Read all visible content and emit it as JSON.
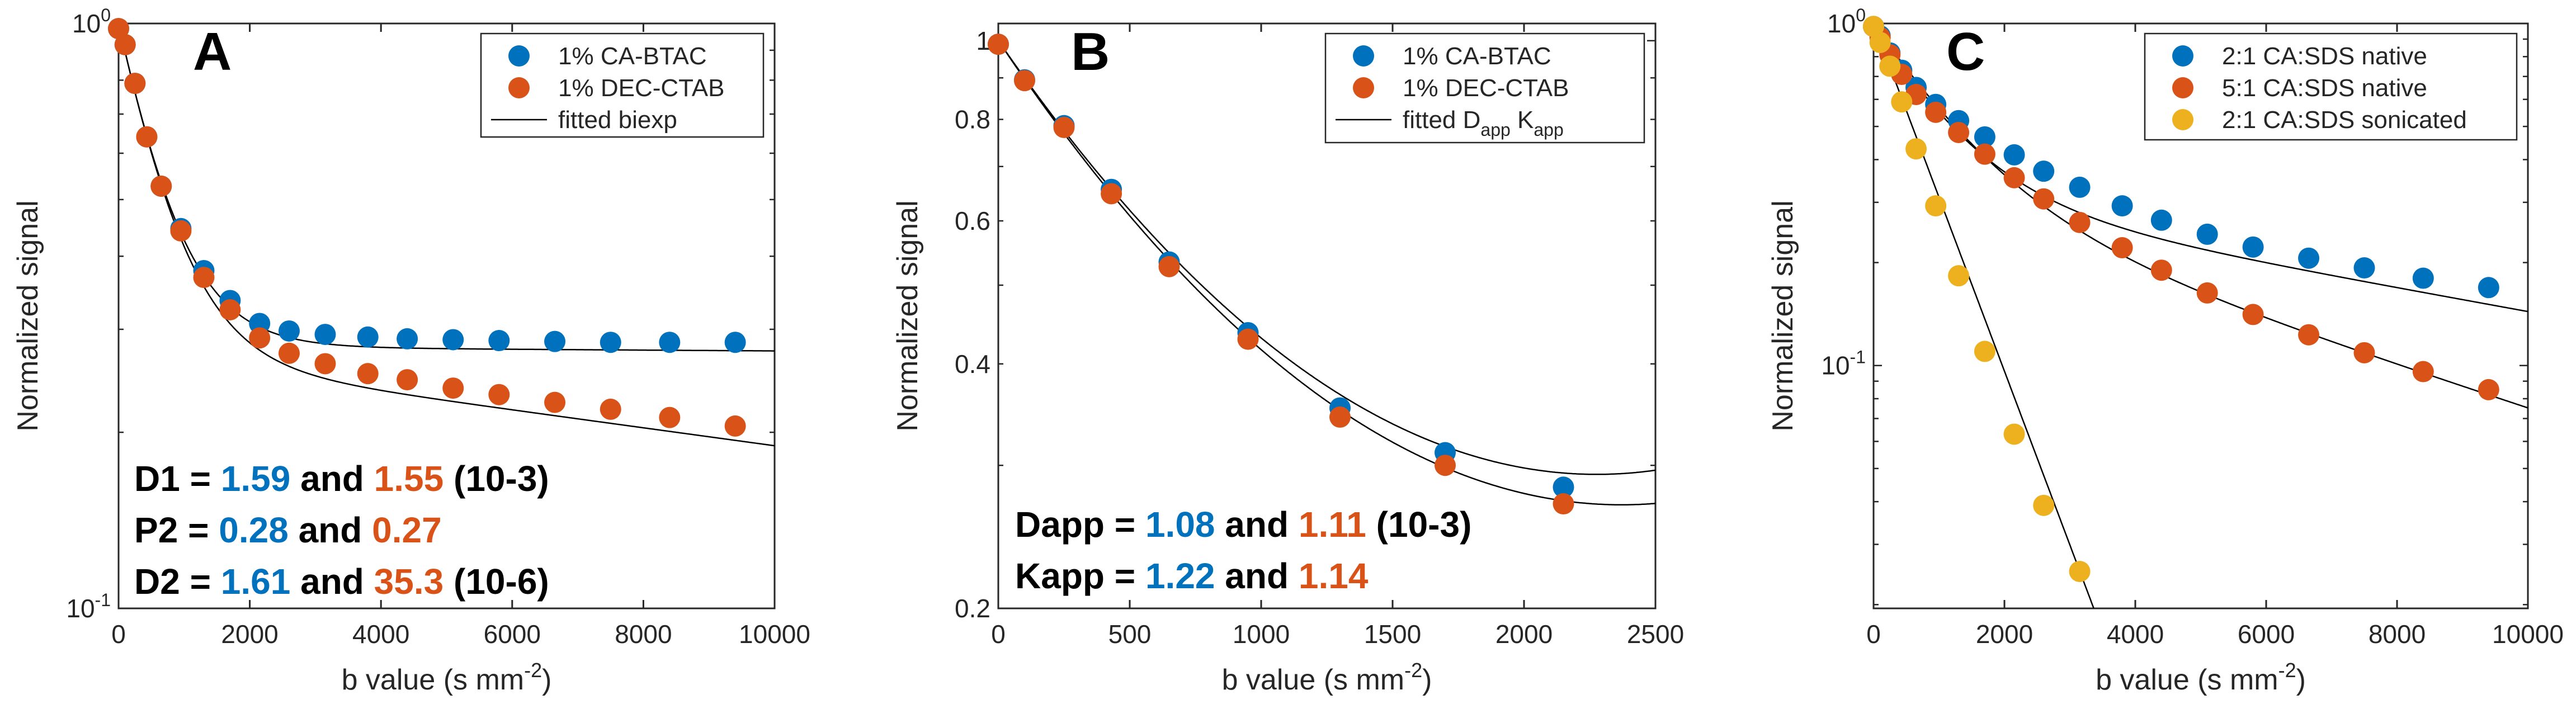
{
  "colors": {
    "blue": "#0072BD",
    "orange": "#D95319",
    "yellow": "#EDB120",
    "axis": "#262626",
    "fit": "#000000"
  },
  "chart_data": [
    {
      "type": "scatter",
      "panel_label": "A",
      "xlabel": {
        "main": "b value (s mm",
        "sup": "-2",
        "close": ")"
      },
      "ylabel": "Normalized signal",
      "xscale": "linear",
      "yscale": "log",
      "xlim": [
        0,
        10000
      ],
      "ylim": [
        0.1,
        1
      ],
      "xticks": [
        0,
        2000,
        4000,
        6000,
        8000,
        10000
      ],
      "xtick_labels": [
        "0",
        "2000",
        "4000",
        "6000",
        "8000",
        "10000"
      ],
      "yticks": [
        {
          "value": 1,
          "base": "10",
          "exp": "0"
        },
        {
          "value": 0.1,
          "base": "10",
          "exp": "-1"
        }
      ],
      "legend": {
        "position": "top-right",
        "entries": [
          {
            "label": "1% CA-BTAC",
            "kind": "marker",
            "color": "blue"
          },
          {
            "label": "1% DEC-CTAB",
            "kind": "marker",
            "color": "orange"
          },
          {
            "label": "fitted biexp",
            "kind": "line",
            "color": "fit"
          }
        ]
      },
      "series": [
        {
          "name": "1% CA-BTAC",
          "color": "blue",
          "x": [
            0,
            100,
            250,
            430,
            650,
            950,
            1300,
            1700,
            2150,
            2600,
            3150,
            3800,
            4400,
            5100,
            5800,
            6650,
            7500,
            8400,
            9400
          ],
          "y": [
            0.98,
            0.92,
            0.79,
            0.64,
            0.527,
            0.446,
            0.378,
            0.336,
            0.307,
            0.298,
            0.294,
            0.291,
            0.289,
            0.288,
            0.287,
            0.286,
            0.285,
            0.285,
            0.285
          ]
        },
        {
          "name": "1% DEC-CTAB",
          "color": "orange",
          "x": [
            0,
            100,
            250,
            430,
            650,
            950,
            1300,
            1700,
            2150,
            2600,
            3150,
            3800,
            4400,
            5100,
            5800,
            6650,
            7500,
            8400,
            9400
          ],
          "y": [
            0.98,
            0.92,
            0.79,
            0.64,
            0.527,
            0.442,
            0.368,
            0.324,
            0.29,
            0.273,
            0.262,
            0.252,
            0.246,
            0.238,
            0.232,
            0.225,
            0.219,
            0.212,
            0.205
          ]
        }
      ],
      "fits": [
        {
          "model": "biexp",
          "f": 0.72,
          "d1_mm2_per_s": 0.00159,
          "p2": 0.28,
          "d2_mm2_per_s": 1.61e-06,
          "xmax": 10000
        },
        {
          "model": "biexp",
          "f": 0.73,
          "d1_mm2_per_s": 0.00155,
          "p2": 0.27,
          "d2_mm2_per_s": 3.53e-05,
          "xmax": 10000
        }
      ],
      "annotations": [
        {
          "prefix": "D1 = ",
          "v1": "1.59",
          "mid": " and ",
          "v2": "1.55",
          "suffix": " (10-3)"
        },
        {
          "prefix": "P2 = ",
          "v1": "0.28",
          "mid": " and ",
          "v2": "0.27",
          "suffix": ""
        },
        {
          "prefix": "D2 = ",
          "v1": "1.61",
          "mid": " and ",
          "v2": "35.3",
          "suffix": " (10-6)"
        }
      ]
    },
    {
      "type": "scatter",
      "panel_label": "B",
      "xlabel": {
        "main": "b value (s mm",
        "sup": "-2",
        "close": ")"
      },
      "ylabel": "Normalized signal",
      "xscale": "linear",
      "yscale": "log",
      "xlim": [
        0,
        2500
      ],
      "ylim": [
        0.2,
        1.05
      ],
      "xticks": [
        0,
        500,
        1000,
        1500,
        2000,
        2500
      ],
      "xtick_labels": [
        "0",
        "500",
        "1000",
        "1500",
        "2000",
        "2500"
      ],
      "yticks": [
        {
          "value": 1,
          "label": "1"
        },
        {
          "value": 0.8,
          "label": "0.8"
        },
        {
          "value": 0.6,
          "label": "0.6"
        },
        {
          "value": 0.4,
          "label": "0.4"
        },
        {
          "value": 0.2,
          "label": "0.2"
        }
      ],
      "legend": {
        "position": "top-right",
        "entries": [
          {
            "label": "1% CA-BTAC",
            "kind": "marker",
            "color": "blue"
          },
          {
            "label": "1% DEC-CTAB",
            "kind": "marker",
            "color": "orange"
          },
          {
            "label": "fitted D",
            "sub1": "app",
            "mid": " K",
            "sub2": "app",
            "kind": "line",
            "color": "fit"
          }
        ]
      },
      "series": [
        {
          "name": "1% CA-BTAC",
          "color": "blue",
          "x": [
            0,
            100,
            250,
            430,
            650,
            950,
            1300,
            1700,
            2150
          ],
          "y": [
            0.99,
            0.895,
            0.786,
            0.656,
            0.534,
            0.437,
            0.353,
            0.311,
            0.282
          ]
        },
        {
          "name": "1% DEC-CTAB",
          "color": "orange",
          "x": [
            0,
            100,
            250,
            430,
            650,
            950,
            1300,
            1700,
            2150
          ],
          "y": [
            0.99,
            0.893,
            0.782,
            0.648,
            0.527,
            0.429,
            0.344,
            0.3,
            0.269
          ]
        }
      ],
      "fits": [
        {
          "model": "kurtosis",
          "dapp_mm2_per_s": 0.00108,
          "kapp": 1.22,
          "xmax": 2500
        },
        {
          "model": "kurtosis",
          "dapp_mm2_per_s": 0.00111,
          "kapp": 1.14,
          "xmax": 2500
        }
      ],
      "annotations": [
        {
          "prefix": "Dapp = ",
          "v1": "1.08",
          "mid": " and ",
          "v2": "1.11",
          "suffix": " (10-3)"
        },
        {
          "prefix": "Kapp = ",
          "v1": "1.22",
          "mid": " and ",
          "v2": "1.14",
          "suffix": ""
        }
      ]
    },
    {
      "type": "scatter",
      "panel_label": "C",
      "xlabel": {
        "main": "b value (s mm",
        "sup": "-2",
        "close": ")"
      },
      "ylabel": "Normalized signal",
      "xscale": "linear",
      "yscale": "log",
      "xlim": [
        0,
        10000
      ],
      "ylim": [
        0.0195,
        1
      ],
      "xticks": [
        0,
        2000,
        4000,
        6000,
        8000,
        10000
      ],
      "xtick_labels": [
        "0",
        "2000",
        "4000",
        "6000",
        "8000",
        "10000"
      ],
      "yticks": [
        {
          "value": 1,
          "base": "10",
          "exp": "0"
        },
        {
          "value": 0.1,
          "base": "10",
          "exp": "-1"
        }
      ],
      "legend": {
        "position": "top-right",
        "entries": [
          {
            "label": "2:1 CA:SDS native",
            "kind": "marker",
            "color": "blue"
          },
          {
            "label": "5:1 CA:SDS native",
            "kind": "marker",
            "color": "orange"
          },
          {
            "label": "2:1 CA:SDS sonicated",
            "kind": "marker",
            "color": "yellow"
          }
        ]
      },
      "series": [
        {
          "name": "2:1 CA:SDS native",
          "color": "blue",
          "x": [
            0,
            100,
            250,
            430,
            650,
            950,
            1300,
            1700,
            2150,
            2600,
            3150,
            3800,
            4400,
            5100,
            5800,
            6650,
            7500,
            8400,
            9400
          ],
          "y": [
            0.98,
            0.92,
            0.82,
            0.73,
            0.65,
            0.58,
            0.52,
            0.466,
            0.413,
            0.37,
            0.332,
            0.293,
            0.266,
            0.242,
            0.222,
            0.206,
            0.193,
            0.18,
            0.169
          ]
        },
        {
          "name": "5:1 CA:SDS native",
          "color": "orange",
          "x": [
            0,
            100,
            250,
            430,
            650,
            950,
            1300,
            1700,
            2150,
            2600,
            3150,
            3800,
            4400,
            5100,
            5800,
            6650,
            7500,
            8400,
            9400
          ],
          "y": [
            0.98,
            0.91,
            0.81,
            0.71,
            0.62,
            0.55,
            0.48,
            0.415,
            0.354,
            0.307,
            0.262,
            0.221,
            0.19,
            0.163,
            0.141,
            0.123,
            0.109,
            0.096,
            0.085
          ]
        },
        {
          "name": "2:1 CA:SDS sonicated",
          "color": "yellow",
          "x": [
            0,
            100,
            250,
            430,
            650,
            950,
            1300,
            1700,
            2150,
            2600,
            3150
          ],
          "y": [
            0.98,
            0.88,
            0.75,
            0.59,
            0.43,
            0.293,
            0.183,
            0.11,
            0.063,
            0.039,
            0.025
          ]
        }
      ],
      "fits": [
        {
          "model": "biexp",
          "f": 0.68,
          "d1_mm2_per_s": 0.00098,
          "p2": 0.32,
          "d2_mm2_per_s": 8e-05,
          "xmax": 10000
        },
        {
          "model": "biexp",
          "f": 0.68,
          "d1_mm2_per_s": 0.00086,
          "p2": 0.32,
          "d2_mm2_per_s": 0.000145,
          "xmax": 10000
        },
        {
          "model": "biexp",
          "f": 1.0,
          "d1_mm2_per_s": 0.00117,
          "p2": 0,
          "d2_mm2_per_s": 0,
          "xmax": 3400
        }
      ],
      "annotations": []
    }
  ]
}
